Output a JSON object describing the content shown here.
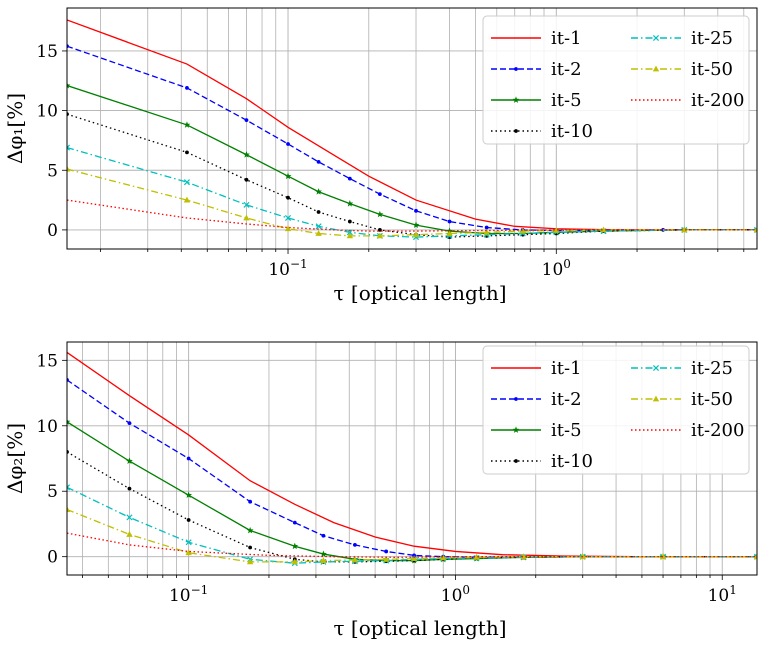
{
  "chart_data": [
    {
      "type": "line",
      "xscale": "log",
      "xlim": [
        0.015,
        5.6
      ],
      "ylim": [
        -1.6,
        18.6
      ],
      "xlabel": "τ [optical length]",
      "ylabel": "Δφ₁[%]",
      "xticks": [
        {
          "value": 0.1,
          "base": "10",
          "exp": "−1"
        },
        {
          "value": 1,
          "base": "10",
          "exp": "0"
        }
      ],
      "yticks": [
        0,
        5,
        10,
        15
      ],
      "grid": true,
      "legend": {
        "position": "top-right",
        "columns": 2
      },
      "series": [
        {
          "name": "it-1",
          "color": "#ff0000",
          "dash": "",
          "marker": "none",
          "x": [
            0.015,
            0.042,
            0.07,
            0.1,
            0.15,
            0.2,
            0.3,
            0.5,
            0.7,
            1.0,
            1.5,
            2,
            3,
            5.6
          ],
          "y": [
            17.6,
            13.9,
            11.0,
            8.6,
            6.2,
            4.5,
            2.5,
            0.9,
            0.3,
            0.1,
            0.02,
            0.0,
            0.0,
            0.0
          ]
        },
        {
          "name": "it-2",
          "color": "#0000ff",
          "dash": "6,3",
          "marker": "dot",
          "x": [
            0.015,
            0.042,
            0.07,
            0.1,
            0.13,
            0.17,
            0.22,
            0.3,
            0.4,
            0.55,
            0.75,
            1.0,
            1.5,
            2.5,
            5.6
          ],
          "y": [
            15.4,
            11.9,
            9.2,
            7.2,
            5.7,
            4.3,
            3.0,
            1.6,
            0.7,
            0.2,
            0.0,
            -0.05,
            -0.05,
            0.0,
            0.0
          ]
        },
        {
          "name": "it-5",
          "color": "#008000",
          "dash": "",
          "marker": "star",
          "x": [
            0.015,
            0.042,
            0.07,
            0.1,
            0.13,
            0.17,
            0.22,
            0.3,
            0.4,
            0.55,
            0.75,
            1.0,
            1.5,
            3,
            5.6
          ],
          "y": [
            12.1,
            8.8,
            6.3,
            4.5,
            3.2,
            2.2,
            1.3,
            0.4,
            -0.1,
            -0.3,
            -0.3,
            -0.2,
            -0.1,
            0.0,
            0.0
          ]
        },
        {
          "name": "it-10",
          "color": "#000000",
          "dash": "1.5,3",
          "marker": "dot",
          "x": [
            0.015,
            0.042,
            0.07,
            0.1,
            0.13,
            0.17,
            0.22,
            0.3,
            0.4,
            0.55,
            0.75,
            1.0,
            1.5,
            3,
            5.6
          ],
          "y": [
            9.7,
            6.5,
            4.2,
            2.7,
            1.5,
            0.7,
            0.0,
            -0.4,
            -0.6,
            -0.5,
            -0.4,
            -0.3,
            -0.1,
            0.0,
            0.0
          ]
        },
        {
          "name": "it-25",
          "color": "#00bfbf",
          "dash": "7,3,1.5,3",
          "marker": "x",
          "x": [
            0.015,
            0.042,
            0.07,
            0.1,
            0.13,
            0.17,
            0.22,
            0.3,
            0.4,
            0.55,
            0.75,
            1.0,
            1.5,
            3,
            5.6
          ],
          "y": [
            6.9,
            4.0,
            2.1,
            1.0,
            0.3,
            -0.2,
            -0.5,
            -0.6,
            -0.5,
            -0.4,
            -0.3,
            -0.2,
            -0.1,
            0.0,
            0.0
          ]
        },
        {
          "name": "it-50",
          "color": "#bfbf00",
          "dash": "7,3,1.5,3",
          "marker": "triangle",
          "x": [
            0.015,
            0.042,
            0.07,
            0.1,
            0.13,
            0.17,
            0.22,
            0.3,
            0.4,
            0.55,
            0.75,
            1.0,
            1.5,
            3,
            5.6
          ],
          "y": [
            5.1,
            2.5,
            1.0,
            0.1,
            -0.3,
            -0.5,
            -0.5,
            -0.4,
            -0.3,
            -0.2,
            -0.1,
            -0.05,
            0.0,
            0.0,
            0.0
          ]
        },
        {
          "name": "it-200",
          "color": "#ff0000",
          "dash": "1.5,2.5",
          "marker": "none",
          "x": [
            0.015,
            0.042,
            0.07,
            0.1,
            0.15,
            0.2,
            0.3,
            0.5,
            1.0,
            2,
            5.6
          ],
          "y": [
            2.5,
            1.0,
            0.5,
            0.2,
            0.0,
            -0.1,
            -0.1,
            -0.05,
            0.0,
            0.0,
            0.0
          ]
        }
      ]
    },
    {
      "type": "line",
      "xscale": "log",
      "xlim": [
        0.035,
        13.5
      ],
      "ylim": [
        -1.4,
        16.4
      ],
      "xlabel": "τ [optical length]",
      "ylabel": "Δφ₂[%]",
      "xticks": [
        {
          "value": 0.1,
          "base": "10",
          "exp": "−1"
        },
        {
          "value": 1,
          "base": "10",
          "exp": "0"
        },
        {
          "value": 10,
          "base": "10",
          "exp": "1"
        }
      ],
      "yticks": [
        0,
        5,
        10,
        15
      ],
      "grid": true,
      "legend": {
        "position": "top-right",
        "columns": 2
      },
      "series": [
        {
          "name": "it-1",
          "color": "#ff0000",
          "dash": "",
          "marker": "none",
          "x": [
            0.035,
            0.06,
            0.1,
            0.17,
            0.25,
            0.35,
            0.5,
            0.7,
            1.0,
            1.5,
            2.5,
            5,
            13.5
          ],
          "y": [
            15.6,
            12.3,
            9.3,
            5.8,
            4.0,
            2.6,
            1.5,
            0.8,
            0.4,
            0.15,
            0.05,
            0.0,
            0.0
          ]
        },
        {
          "name": "it-2",
          "color": "#0000ff",
          "dash": "6,3",
          "marker": "dot",
          "x": [
            0.035,
            0.06,
            0.1,
            0.17,
            0.25,
            0.32,
            0.42,
            0.55,
            0.7,
            0.9,
            1.2,
            1.8,
            3,
            6,
            13.5
          ],
          "y": [
            13.5,
            10.2,
            7.5,
            4.2,
            2.6,
            1.6,
            0.9,
            0.4,
            0.1,
            0.0,
            -0.05,
            -0.05,
            0.0,
            0.0,
            0.0
          ]
        },
        {
          "name": "it-5",
          "color": "#008000",
          "dash": "",
          "marker": "star",
          "x": [
            0.035,
            0.06,
            0.1,
            0.17,
            0.25,
            0.32,
            0.42,
            0.55,
            0.7,
            0.9,
            1.2,
            1.8,
            3,
            6,
            13.5
          ],
          "y": [
            10.3,
            7.3,
            4.7,
            2.0,
            0.8,
            0.2,
            -0.2,
            -0.3,
            -0.3,
            -0.2,
            -0.15,
            -0.05,
            0.0,
            0.0,
            0.0
          ]
        },
        {
          "name": "it-10",
          "color": "#000000",
          "dash": "1.5,3",
          "marker": "dot",
          "x": [
            0.035,
            0.06,
            0.1,
            0.17,
            0.25,
            0.32,
            0.42,
            0.55,
            0.7,
            0.9,
            1.2,
            1.8,
            3,
            6,
            13.5
          ],
          "y": [
            8.0,
            5.2,
            2.8,
            0.7,
            -0.2,
            -0.4,
            -0.4,
            -0.35,
            -0.3,
            -0.2,
            -0.1,
            -0.05,
            0.0,
            0.0,
            0.0
          ]
        },
        {
          "name": "it-25",
          "color": "#00bfbf",
          "dash": "7,3,1.5,3",
          "marker": "x",
          "x": [
            0.035,
            0.06,
            0.1,
            0.17,
            0.25,
            0.32,
            0.42,
            0.55,
            0.7,
            0.9,
            1.2,
            1.8,
            3,
            6,
            13.5
          ],
          "y": [
            5.3,
            3.0,
            1.1,
            -0.2,
            -0.5,
            -0.4,
            -0.35,
            -0.3,
            -0.2,
            -0.15,
            -0.1,
            -0.05,
            0.0,
            0.0,
            0.0
          ]
        },
        {
          "name": "it-50",
          "color": "#bfbf00",
          "dash": "7,3,1.5,3",
          "marker": "triangle",
          "x": [
            0.035,
            0.06,
            0.1,
            0.17,
            0.25,
            0.32,
            0.42,
            0.55,
            0.7,
            0.9,
            1.2,
            1.8,
            3,
            6,
            13.5
          ],
          "y": [
            3.6,
            1.7,
            0.3,
            -0.4,
            -0.4,
            -0.3,
            -0.25,
            -0.2,
            -0.15,
            -0.1,
            -0.05,
            0.0,
            0.0,
            0.0,
            0.0
          ]
        },
        {
          "name": "it-200",
          "color": "#ff0000",
          "dash": "1.5,2.5",
          "marker": "none",
          "x": [
            0.035,
            0.06,
            0.1,
            0.2,
            0.35,
            0.6,
            1.0,
            2,
            5,
            13.5
          ],
          "y": [
            1.8,
            0.9,
            0.4,
            0.1,
            0.0,
            -0.05,
            0.0,
            0.0,
            0.0,
            0.0
          ]
        }
      ]
    }
  ]
}
